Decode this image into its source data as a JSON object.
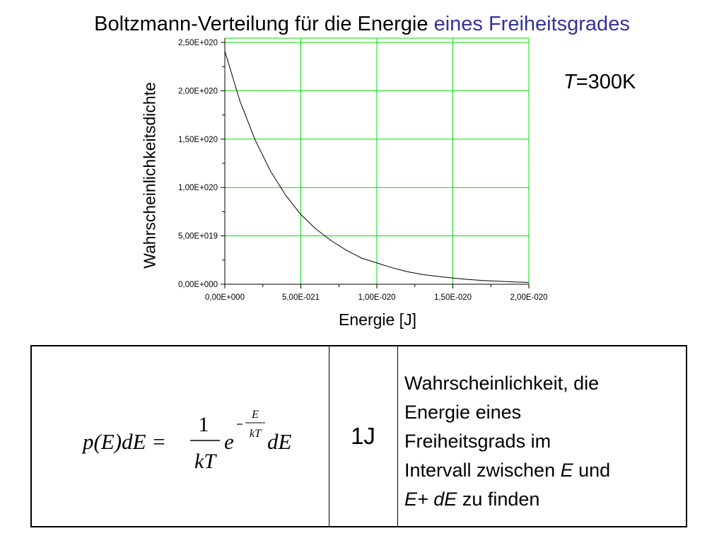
{
  "slide": {
    "title_main": "Boltzmann-Verteilung für die Energie ",
    "title_accent": "eines Freiheitsgrades",
    "temperature_symbol": "T",
    "temperature_value": "=300K",
    "accent_color": "#333399"
  },
  "chart_data": {
    "type": "line",
    "xlabel": "Energie [J]",
    "ylabel": "Wahrscheinlichkeitsdichte",
    "xlim": [
      0,
      2e-20
    ],
    "ylim": [
      0,
      2.5e+20
    ],
    "x_ticks": [
      "0,00E+000",
      "5,00E-021",
      "1,00E-020",
      "1,50E-020",
      "2,00E-020"
    ],
    "y_ticks": [
      "0,00E+000",
      "5,00E+019",
      "1,00E+020",
      "1,50E+020",
      "2,00E+020",
      "2,50E+020"
    ],
    "grid": true,
    "grid_color": "#00dd00",
    "series": [
      {
        "x": [
          0,
          1e-21,
          2e-21,
          3e-21,
          4e-21,
          5e-21,
          6e-21,
          7e-21,
          8e-21,
          9e-21,
          1e-20,
          1.1e-20,
          1.2e-20,
          1.3e-20,
          1.4e-20,
          1.5e-20,
          1.6e-20,
          1.7e-20,
          1.8e-20,
          1.9e-20,
          2e-20
        ],
        "y": [
          2.41e+20,
          1.89e+20,
          1.49e+20,
          1.17e+20,
          9.2e+19,
          7.2e+19,
          5.7e+19,
          4.5e+19,
          3.5e+19,
          2.7e+19,
          2.2e+19,
          1.7e+19,
          1.3e+19,
          1e+19,
          8.1e+18,
          6.4e+18,
          5e+18,
          3.9e+18,
          3.1e+18,
          2.4e+18,
          1.9e+18
        ]
      }
    ]
  },
  "table": {
    "formula_lhs": "p(E)dE =",
    "formula_num": "1",
    "formula_den": "kT",
    "formula_e": "e",
    "formula_exp_num": "E",
    "formula_exp_den": "kT",
    "formula_dE": "dE",
    "unit": "1J",
    "desc_line1": "Wahrscheinlichkeit, die",
    "desc_line2": "Energie eines",
    "desc_line3": "Freiheitsgrads im",
    "desc_line4_a": "Intervall zwischen ",
    "desc_line4_b": "E",
    "desc_line4_c": " und",
    "desc_line5_a": "E+ dE",
    "desc_line5_b": " zu finden"
  }
}
